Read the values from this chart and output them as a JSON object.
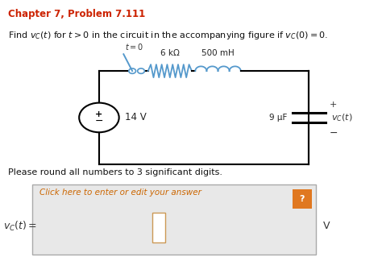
{
  "title": "Chapter 7, Problem 7.111",
  "title_color": "#cc2200",
  "round_text": "Please round all numbers to 3 significant digits.",
  "vc_label": "$v_C(t) =$",
  "v_label": "V",
  "click_text": "Click here to enter or edit your answer",
  "background_color": "#ffffff",
  "box_fill": "#e8e8e8",
  "box_border": "#aaaaaa",
  "question_badge_color": "#e07820",
  "circuit": {
    "resistor_label": "6 kΩ",
    "inductor_label": "500 mH",
    "capacitor_label": "9 μF",
    "source_label": "14 V"
  }
}
